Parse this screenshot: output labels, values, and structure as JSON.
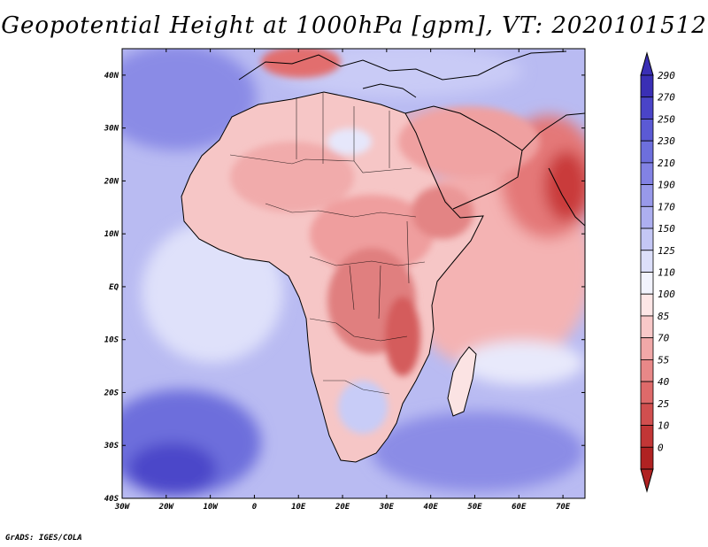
{
  "title": "Geopotential Height at 1000hPa [gpm], VT: 2020101512",
  "footer": "GrADS: IGES/COLA",
  "lon_labels": [
    "30W",
    "20W",
    "10W",
    "0",
    "10E",
    "20E",
    "30E",
    "40E",
    "50E",
    "60E",
    "70E"
  ],
  "lat_labels": [
    "40N",
    "30N",
    "20N",
    "10N",
    "EQ",
    "10S",
    "20S",
    "30S",
    "40S"
  ],
  "colorbar": {
    "levels": [
      "290",
      "270",
      "250",
      "230",
      "210",
      "190",
      "170",
      "150",
      "125",
      "110",
      "100",
      "85",
      "70",
      "55",
      "40",
      "25",
      "10",
      "0"
    ],
    "colors": [
      "#3a2fb5",
      "#4a44c8",
      "#5b5ad4",
      "#6d6fdc",
      "#8282e4",
      "#9899ea",
      "#adaff0",
      "#c4c7f5",
      "#dcdffa",
      "#f2f3fd",
      "#fde6e6",
      "#f8c8c8",
      "#f1a8a8",
      "#e88888",
      "#de6a6a",
      "#d14f4f",
      "#c23636",
      "#b02222"
    ]
  },
  "map_extent": {
    "lon_min": -30,
    "lon_max": 75,
    "lat_min": -40,
    "lat_max": 45
  }
}
